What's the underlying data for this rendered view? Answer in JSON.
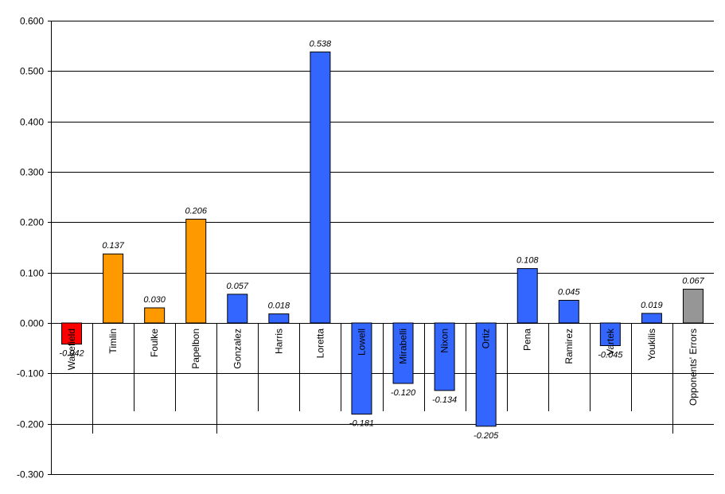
{
  "chart_data": {
    "type": "bar",
    "title": "",
    "xlabel": "",
    "ylabel": "",
    "ylim": [
      -0.3,
      0.6
    ],
    "yticks": [
      "0.600",
      "0.500",
      "0.400",
      "0.300",
      "0.200",
      "0.100",
      "0.000",
      "-0.100",
      "-0.200",
      "-0.300"
    ],
    "grid": true,
    "legend": "none",
    "categories": [
      "Wakefield",
      "Timlin",
      "Foulke",
      "Papelbon",
      "Gonzalez",
      "Harris",
      "Loretta",
      "Lowell",
      "Mirabelli",
      "Nixon",
      "Ortiz",
      "Pena",
      "Ramirez",
      "Vartek",
      "Youkilis",
      "Opponents' Errors"
    ],
    "values": [
      -0.042,
      0.137,
      0.03,
      0.206,
      0.057,
      0.018,
      0.538,
      -0.181,
      -0.12,
      -0.134,
      -0.205,
      0.108,
      0.045,
      -0.045,
      0.019,
      0.067
    ],
    "value_labels": [
      "-0.042",
      "0.137",
      "0.030",
      "0.206",
      "0.057",
      "0.018",
      "0.538",
      "-0.181",
      "-0.120",
      "-0.134",
      "-0.205",
      "0.108",
      "0.045",
      "-0.045",
      "0.019",
      "0.067"
    ],
    "colors": [
      "#ff0000",
      "#ff9900",
      "#ff9900",
      "#ff9900",
      "#3366ff",
      "#3366ff",
      "#3366ff",
      "#3366ff",
      "#3366ff",
      "#3366ff",
      "#3366ff",
      "#3366ff",
      "#3366ff",
      "#3366ff",
      "#3366ff",
      "#969696"
    ],
    "groups": [
      {
        "start": 0,
        "end": 0
      },
      {
        "start": 1,
        "end": 3
      },
      {
        "start": 4,
        "end": 14
      },
      {
        "start": 15,
        "end": 15
      }
    ]
  }
}
